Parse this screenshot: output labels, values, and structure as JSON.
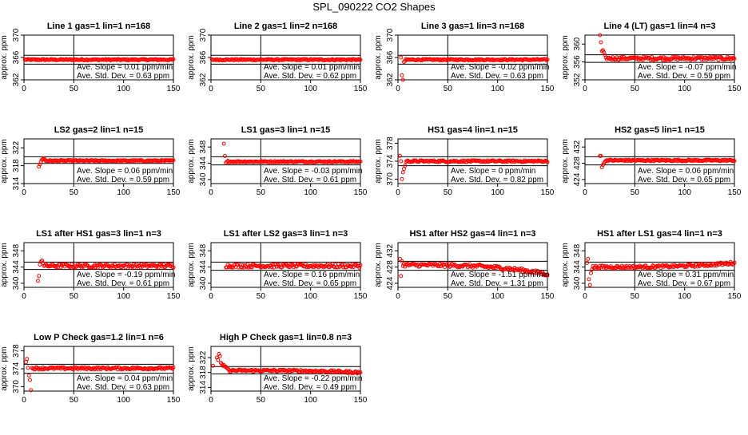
{
  "page_title": "SPL_090222  CO2 Shapes",
  "chart_data": [
    {
      "type": "scatter",
      "title": "Line 1 gas=1 lin=1 n=168",
      "ylabel": "approx. ppm",
      "xlim": [
        0,
        150
      ],
      "ylim": [
        362,
        370
      ],
      "xticks": [
        0,
        50,
        100,
        150
      ],
      "yticks": [
        362,
        366,
        370
      ],
      "hlines": [
        364.8,
        366.4
      ],
      "vline": 50,
      "slope_text": "Ave. Slope =  0.01  ppm/min",
      "std_text": "Ave. Std. Dev. =  0.63  ppm",
      "base": 365.6,
      "noise": 0.12,
      "trend": 0,
      "start": 1,
      "early": []
    },
    {
      "type": "scatter",
      "title": "Line 2 gas=1 lin=2 n=168",
      "ylabel": "approx. ppm",
      "xlim": [
        0,
        150
      ],
      "ylim": [
        362,
        370
      ],
      "xticks": [
        0,
        50,
        100,
        150
      ],
      "yticks": [
        362,
        366,
        370
      ],
      "hlines": [
        364.8,
        366.4
      ],
      "vline": 50,
      "slope_text": "Ave. Slope =  0.01  ppm/min",
      "std_text": "Ave. Std. Dev. =  0.62  ppm",
      "base": 365.6,
      "noise": 0.12,
      "trend": 0,
      "start": 1,
      "early": []
    },
    {
      "type": "scatter",
      "title": "Line 3 gas=1 lin=3 n=168",
      "ylabel": "approx. ppm",
      "xlim": [
        0,
        150
      ],
      "ylim": [
        362,
        370
      ],
      "xticks": [
        0,
        50,
        100,
        150
      ],
      "yticks": [
        362,
        366,
        370
      ],
      "hlines": [
        364.8,
        366.4
      ],
      "vline": 50,
      "slope_text": "Ave. Slope =  -0.02  ppm/min",
      "std_text": "Ave. Std. Dev. =  0.63  ppm",
      "base": 365.6,
      "noise": 0.12,
      "trend": 0,
      "start": 8,
      "early": [
        [
          3,
          366.0
        ],
        [
          4,
          362.8
        ],
        [
          5,
          361.8
        ],
        [
          6,
          365.2
        ],
        [
          7,
          365.4
        ]
      ]
    },
    {
      "type": "scatter",
      "title": "Line 4 (LT) gas=1 lin=4 n=3",
      "ylabel": "approx. ppm",
      "xlim": [
        0,
        150
      ],
      "ylim": [
        352,
        362
      ],
      "xticks": [
        0,
        50,
        100,
        150
      ],
      "yticks": [
        352,
        356,
        360
      ],
      "hlines": [
        355.9,
        357.6
      ],
      "vline": 50,
      "slope_text": "Ave. Slope =  -0.07  ppm/min",
      "std_text": "Ave. Std. Dev. =  0.59  ppm",
      "base": 356.8,
      "noise": 0.35,
      "trend": 0,
      "start": 24,
      "early": [
        [
          15,
          362.0
        ],
        [
          16,
          360.4
        ],
        [
          17,
          358.4
        ],
        [
          18,
          358.6
        ],
        [
          19,
          358.2
        ],
        [
          20,
          357.6
        ],
        [
          21,
          357.0
        ],
        [
          22,
          356.6
        ],
        [
          23,
          356.9
        ]
      ]
    },
    {
      "type": "scatter",
      "title": "LS2 gas=2 lin=1 n=15",
      "ylabel": "approx. ppm",
      "xlim": [
        0,
        150
      ],
      "ylim": [
        314,
        324
      ],
      "xticks": [
        0,
        50,
        100,
        150
      ],
      "yticks": [
        314,
        318,
        322
      ],
      "hlines": [
        318.5,
        320.0
      ],
      "vline": 50,
      "slope_text": "Ave. Slope =  0.06  ppm/min",
      "std_text": "Ave. Std. Dev. =  0.59  ppm",
      "base": 319.1,
      "noise": 0.15,
      "trend": 0,
      "start": 22,
      "early": [
        [
          15,
          317.8
        ],
        [
          16,
          318.3
        ],
        [
          17,
          318.9
        ],
        [
          18,
          319.3
        ],
        [
          19,
          319.5
        ],
        [
          20,
          319.6
        ],
        [
          21,
          319.4
        ]
      ]
    },
    {
      "type": "scatter",
      "title": "LS1 gas=3 lin=1 n=15",
      "ylabel": "approx. ppm",
      "xlim": [
        0,
        150
      ],
      "ylim": [
        339,
        350
      ],
      "xticks": [
        0,
        50,
        100,
        150
      ],
      "yticks": [
        340,
        344,
        348
      ],
      "hlines": [
        343.6,
        345.6
      ],
      "vline": 50,
      "slope_text": "Ave. Slope =  -0.03  ppm/min",
      "std_text": "Ave. Std. Dev. =  0.61  ppm",
      "base": 344.4,
      "noise": 0.15,
      "trend": 0,
      "start": 18,
      "early": [
        [
          13,
          348.8
        ],
        [
          14,
          345.8
        ],
        [
          15,
          344.1
        ],
        [
          16,
          344.4
        ],
        [
          17,
          344.6
        ]
      ]
    },
    {
      "type": "scatter",
      "title": "HS1 gas=4 lin=1 n=15",
      "ylabel": "approx. ppm",
      "xlim": [
        0,
        150
      ],
      "ylim": [
        369,
        379
      ],
      "xticks": [
        0,
        50,
        100,
        150
      ],
      "yticks": [
        370,
        374,
        378
      ],
      "hlines": [
        373.0,
        375.0
      ],
      "vline": 50,
      "slope_text": "Ave. Slope =  0  ppm/min",
      "std_text": "Ave. Std. Dev. =  0.82  ppm",
      "base": 374.0,
      "noise": 0.2,
      "trend": 0,
      "start": 8,
      "early": [
        [
          2,
          375.2
        ],
        [
          3,
          374.0
        ],
        [
          4,
          370.0
        ],
        [
          5,
          371.5
        ],
        [
          6,
          372.3
        ],
        [
          7,
          373.0
        ]
      ]
    },
    {
      "type": "scatter",
      "title": "HS2 gas=5 lin=1 n=15",
      "ylabel": "approx. ppm",
      "xlim": [
        0,
        150
      ],
      "ylim": [
        423,
        434
      ],
      "xticks": [
        0,
        50,
        100,
        150
      ],
      "yticks": [
        424,
        428,
        432
      ],
      "hlines": [
        427.6,
        429.6
      ],
      "vline": 50,
      "slope_text": "Ave. Slope =  0.06  ppm/min",
      "std_text": "Ave. Std. Dev. =  0.65  ppm",
      "base": 428.7,
      "noise": 0.2,
      "trend": 0,
      "start": 22,
      "early": [
        [
          15,
          429.8
        ],
        [
          16,
          429.8
        ],
        [
          17,
          427.0
        ],
        [
          18,
          427.6
        ],
        [
          19,
          428.0
        ],
        [
          20,
          428.4
        ],
        [
          21,
          428.6
        ]
      ]
    },
    {
      "type": "scatter",
      "title": "LS1 after HS1 gas=3 lin=1 n=3",
      "ylabel": "approx. ppm",
      "xlim": [
        0,
        150
      ],
      "ylim": [
        339,
        350
      ],
      "xticks": [
        0,
        50,
        100,
        150
      ],
      "yticks": [
        340,
        344,
        348
      ],
      "hlines": [
        343.4,
        345.2
      ],
      "vline": 50,
      "slope_text": "Ave. Slope =  -0.19  ppm/min",
      "std_text": "Ave. Std. Dev. =  0.61  ppm",
      "base": 344.3,
      "noise": 0.45,
      "trend": 0,
      "start": 20,
      "early": [
        [
          14,
          340.6
        ],
        [
          15,
          341.8
        ],
        [
          16,
          344.6
        ],
        [
          17,
          345.3
        ],
        [
          18,
          345.6
        ],
        [
          19,
          345.0
        ]
      ]
    },
    {
      "type": "scatter",
      "title": "LS1 after LS2 gas=3 lin=1 n=3",
      "ylabel": "approx. ppm",
      "xlim": [
        0,
        150
      ],
      "ylim": [
        339,
        350
      ],
      "xticks": [
        0,
        50,
        100,
        150
      ],
      "yticks": [
        340,
        344,
        348
      ],
      "hlines": [
        343.2,
        345.2
      ],
      "vline": 50,
      "slope_text": "Ave. Slope =  0.16  ppm/min",
      "std_text": "Ave. Std. Dev. =  0.65  ppm",
      "base": 344.3,
      "noise": 0.45,
      "trend": 0,
      "start": 15,
      "early": []
    },
    {
      "type": "scatter",
      "title": "HS1 after HS2 gas=4 lin=1 n=3",
      "ylabel": "approx. ppm",
      "xlim": [
        0,
        150
      ],
      "ylim": [
        423,
        434
      ],
      "xticks": [
        0,
        50,
        100,
        150
      ],
      "yticks": [
        424,
        428,
        432
      ],
      "hlines": [
        427.2,
        429.4
      ],
      "vline": 50,
      "slope_text": "Ave. Slope =  -1.51  ppm/min",
      "std_text": "Ave. Std. Dev. =  1.31  ppm",
      "base": 428.5,
      "noise": 0.45,
      "trend": -2.3,
      "start": 5,
      "early": [
        [
          2,
          430.0
        ],
        [
          3,
          425.8
        ],
        [
          4,
          429.4
        ]
      ]
    },
    {
      "type": "scatter",
      "title": "HS1 after LS1 gas=4 lin=1 n=3",
      "ylabel": "approx. ppm",
      "xlim": [
        0,
        150
      ],
      "ylim": [
        339,
        350
      ],
      "xticks": [
        0,
        50,
        100,
        150
      ],
      "yticks": [
        340,
        344,
        348
      ],
      "hlines": [
        343.2,
        345.2
      ],
      "vline": 50,
      "slope_text": "Ave. Slope =  0.31  ppm/min",
      "std_text": "Ave. Std. Dev. =  0.67  ppm",
      "base": 344.0,
      "noise": 0.35,
      "trend": 1.0,
      "start": 8,
      "early": [
        [
          2,
          345.0
        ],
        [
          3,
          346.0
        ],
        [
          4,
          341.0
        ],
        [
          5,
          339.6
        ],
        [
          6,
          342.5
        ],
        [
          7,
          343.4
        ]
      ]
    },
    {
      "type": "scatter",
      "title": "Low P Check gas=1.2 lin=1 n=6",
      "ylabel": "approx. ppm",
      "xlim": [
        0,
        150
      ],
      "ylim": [
        369,
        379
      ],
      "xticks": [
        0,
        50,
        100,
        150
      ],
      "yticks": [
        370,
        374,
        378
      ],
      "hlines": [
        373.0,
        375.0
      ],
      "vline": 50,
      "slope_text": "Ave. Slope =  0.04  ppm/min",
      "std_text": "Ave. Std. Dev. =  0.63  ppm",
      "base": 374.1,
      "noise": 0.25,
      "trend": 0,
      "start": 8,
      "early": [
        [
          2,
          375.5
        ],
        [
          3,
          376.2
        ],
        [
          4,
          374.2
        ],
        [
          5,
          372.5
        ],
        [
          6,
          371.5
        ],
        [
          7,
          369.2
        ]
      ]
    },
    {
      "type": "scatter",
      "title": "High P Check gas=1 lin=0.8 n=3",
      "ylabel": "approx. ppm",
      "xlim": [
        0,
        150
      ],
      "ylim": [
        313,
        325
      ],
      "xticks": [
        0,
        50,
        100,
        150
      ],
      "yticks": [
        314,
        318,
        322
      ],
      "hlines": [
        317.6,
        319.6
      ],
      "vline": 50,
      "slope_text": "Ave. Slope =  -0.22  ppm/min",
      "std_text": "Ave. Std. Dev. =  0.49  ppm",
      "base": 318.5,
      "noise": 0.3,
      "trend": -0.5,
      "start": 18,
      "early": [
        [
          2,
          319.8
        ],
        [
          6,
          322.0
        ],
        [
          7,
          321.4
        ],
        [
          8,
          323.0
        ],
        [
          9,
          322.4
        ],
        [
          10,
          320.6
        ],
        [
          11,
          320.2
        ],
        [
          12,
          319.8
        ],
        [
          13,
          320.0
        ],
        [
          14,
          319.6
        ],
        [
          15,
          319.5
        ],
        [
          16,
          319.2
        ],
        [
          17,
          319.0
        ]
      ]
    }
  ]
}
